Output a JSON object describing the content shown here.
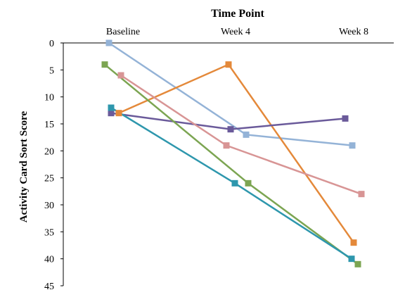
{
  "chart_data": {
    "type": "line",
    "title": "Time Point",
    "xlabel": "Time Point",
    "ylabel": "Activity Card Sort Score",
    "x_categories": [
      "Baseline",
      "Week 4",
      "Week 8"
    ],
    "x_axis_position": "top",
    "y_inverted": true,
    "ylim": [
      0,
      45
    ],
    "y_ticks": [
      0,
      5,
      10,
      15,
      20,
      25,
      30,
      35,
      40,
      45
    ],
    "grid": false,
    "legend": "none",
    "series": [
      {
        "color": "#94b3d7",
        "marker": "square",
        "values": [
          0,
          17,
          19
        ]
      },
      {
        "color": "#e4893a",
        "marker": "square",
        "values": [
          13,
          4,
          37
        ]
      },
      {
        "color": "#6a5a9a",
        "marker": "square",
        "values": [
          13,
          16,
          14
        ]
      },
      {
        "color": "#d89595",
        "marker": "square",
        "values": [
          6,
          19,
          28
        ]
      },
      {
        "color": "#7ca552",
        "marker": "square",
        "values": [
          4,
          26,
          41
        ]
      },
      {
        "color": "#2e97ad",
        "marker": "square",
        "values": [
          12,
          26,
          40
        ]
      }
    ]
  }
}
